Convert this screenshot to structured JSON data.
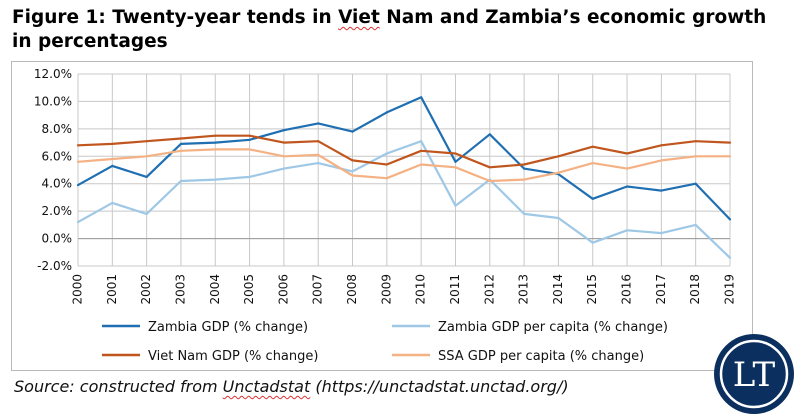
{
  "figure": {
    "title_line1_prefix": "Figure 1: Twenty-year tends in ",
    "title_line1_viet": "Viet",
    "title_line1_mid": " Nam and ",
    "title_line1_zambia": "Zambia’s",
    "title_line1_suffix": " economic growth",
    "title_line2": "in percentages"
  },
  "source": {
    "prefix": "Source: constructed from ",
    "site": "Unctadstat",
    "url": " (https://unctadstat.unctad.org/)"
  },
  "logo": {
    "text": "LT",
    "bg_color": "#0b2f5e",
    "ring_color": "#ffffff"
  },
  "chart_data": {
    "type": "line",
    "x": [
      "2000",
      "2001",
      "2002",
      "2003",
      "2004",
      "2005",
      "2006",
      "2007",
      "2008",
      "2009",
      "2010",
      "2011",
      "2012",
      "2013",
      "2014",
      "2015",
      "2016",
      "2017",
      "2018",
      "2019"
    ],
    "ylim": [
      -2.0,
      12.0
    ],
    "yticks": [
      -2.0,
      0.0,
      2.0,
      4.0,
      6.0,
      8.0,
      10.0,
      12.0
    ],
    "ytick_labels": [
      "-2.0%",
      "0.0%",
      "2.0%",
      "4.0%",
      "6.0%",
      "8.0%",
      "10.0%",
      "12.0%"
    ],
    "grid": true,
    "legend_position": "bottom",
    "series": [
      {
        "name": "Zambia GDP (% change)",
        "color": "#1f6fb2",
        "values": [
          3.9,
          5.3,
          4.5,
          6.9,
          7.0,
          7.2,
          7.9,
          8.4,
          7.8,
          9.2,
          10.3,
          5.6,
          7.6,
          5.1,
          4.7,
          2.9,
          3.8,
          3.5,
          4.0,
          1.4
        ]
      },
      {
        "name": "Zambia GDP per capita (% change)",
        "color": "#9ec8e6",
        "values": [
          1.2,
          2.6,
          1.8,
          4.2,
          4.3,
          4.5,
          5.1,
          5.5,
          4.9,
          6.2,
          7.1,
          2.4,
          4.3,
          1.8,
          1.5,
          -0.3,
          0.6,
          0.4,
          1.0,
          -1.4
        ]
      },
      {
        "name": "Viet Nam GDP (% change)",
        "color": "#c0561e",
        "values": [
          6.8,
          6.9,
          7.1,
          7.3,
          7.5,
          7.5,
          7.0,
          7.1,
          5.7,
          5.4,
          6.4,
          6.2,
          5.2,
          5.4,
          6.0,
          6.7,
          6.2,
          6.8,
          7.1,
          7.0
        ]
      },
      {
        "name": "SSA GDP per capita (% change)",
        "color": "#f4b183",
        "values": [
          5.6,
          5.8,
          6.0,
          6.4,
          6.5,
          6.5,
          6.0,
          6.1,
          4.6,
          4.4,
          5.4,
          5.2,
          4.2,
          4.3,
          4.8,
          5.5,
          5.1,
          5.7,
          6.0,
          6.0
        ]
      }
    ]
  }
}
